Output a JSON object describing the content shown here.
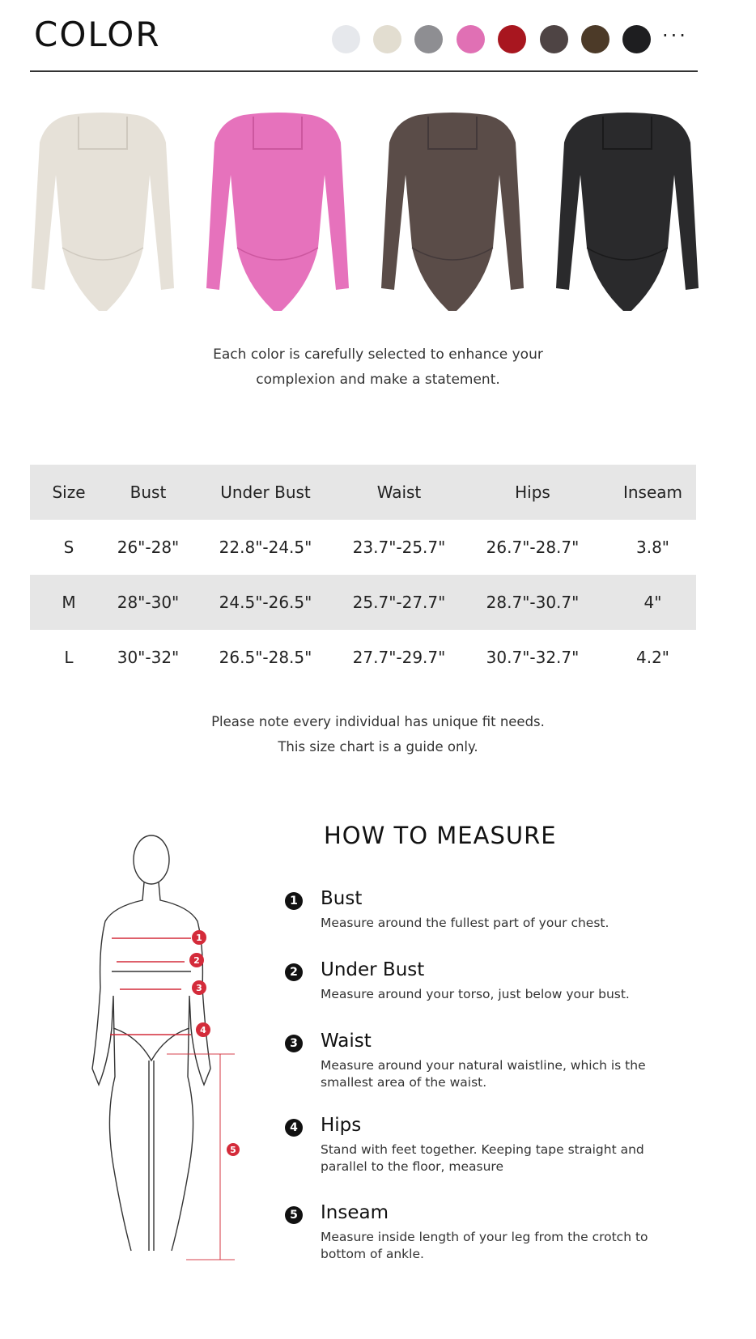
{
  "header": {
    "title": "COLOR",
    "more": "···"
  },
  "swatches": [
    {
      "name": "white",
      "color": "#e6e8ec"
    },
    {
      "name": "beige",
      "color": "#e2ddd0"
    },
    {
      "name": "gray",
      "color": "#8e8e92"
    },
    {
      "name": "pink",
      "color": "#e070b4"
    },
    {
      "name": "red",
      "color": "#a8161f"
    },
    {
      "name": "coffee",
      "color": "#4e4444"
    },
    {
      "name": "brown",
      "color": "#4c3a28"
    },
    {
      "name": "black",
      "color": "#1e1e20"
    }
  ],
  "products": [
    {
      "color": "#e6e1d8",
      "shade": "#cfc9bf"
    },
    {
      "color": "#e672bc",
      "shade": "#cc579f"
    },
    {
      "color": "#5a4c48",
      "shade": "#43393a"
    },
    {
      "color": "#2a2a2c",
      "shade": "#1a1a1b"
    }
  ],
  "color_caption": [
    "Each color is carefully selected to enhance your",
    "complexion and make a statement."
  ],
  "size_table": {
    "headers": [
      "Size",
      "Bust",
      "Under Bust",
      "Waist",
      "Hips",
      "Inseam"
    ],
    "rows": [
      [
        "S",
        "26\"-28\"",
        "22.8\"-24.5\"",
        "23.7\"-25.7\"",
        "26.7\"-28.7\"",
        "3.8\""
      ],
      [
        "M",
        "28\"-30\"",
        "24.5\"-26.5\"",
        "25.7\"-27.7\"",
        "28.7\"-30.7\"",
        "4\""
      ],
      [
        "L",
        "30\"-32\"",
        "26.5\"-28.5\"",
        "27.7\"-29.7\"",
        "30.7\"-32.7\"",
        "4.2\""
      ]
    ]
  },
  "size_note": [
    "Please note every individual has unique fit needs.",
    "This size chart is a guide only."
  ],
  "how_to_measure": {
    "title": "HOW TO MEASURE",
    "markers": [
      "1",
      "2",
      "3",
      "4",
      "5"
    ],
    "items": [
      {
        "num": "1",
        "title": "Bust",
        "desc": "Measure around the fullest part of your chest."
      },
      {
        "num": "2",
        "title": "Under Bust",
        "desc": "Measure around your torso, just below your bust."
      },
      {
        "num": "3",
        "title": "Waist",
        "desc": "Measure around your natural waistline, which is the smallest area of the waist."
      },
      {
        "num": "4",
        "title": "Hips",
        "desc": "Stand with feet together. Keeping tape straight and parallel to the floor, measure"
      },
      {
        "num": "5",
        "title": "Inseam",
        "desc": "Measure inside length of your leg from the crotch to bottom of ankle."
      }
    ]
  }
}
